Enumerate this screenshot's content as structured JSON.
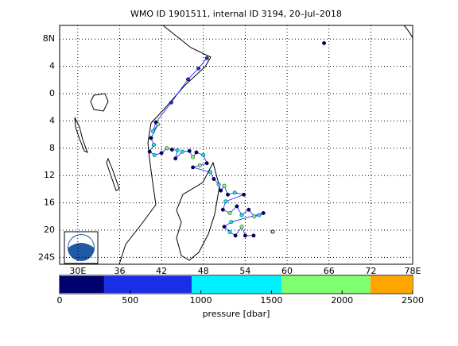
{
  "chart_data": {
    "type": "scatter",
    "title": "WMO ID 1901511, internal ID 3194, 20–Jul–2018",
    "xlim": [
      27.4,
      78
    ],
    "ylim": [
      -25,
      10
    ],
    "xticks": [
      {
        "value": 30,
        "label": "30E"
      },
      36,
      42,
      48,
      54,
      60,
      66,
      72,
      {
        "value": 78,
        "label": "78E"
      }
    ],
    "yticks": [
      {
        "value": 8,
        "label": "8N"
      },
      4,
      0,
      {
        "value": -4,
        "label": "4"
      },
      {
        "value": -8,
        "label": "8"
      },
      {
        "value": -12,
        "label": "12"
      },
      {
        "value": -16,
        "label": "16"
      },
      {
        "value": -20,
        "label": "20"
      },
      {
        "value": -24,
        "label": "24S"
      }
    ],
    "grid": true,
    "line_color": "#1a1aff",
    "x": [
      65.3,
      48.5,
      47.3,
      45.8,
      43.4,
      41.2,
      40.8,
      41.5,
      40.5,
      40.9,
      40.3,
      41.0,
      42.0,
      42.8,
      43.5,
      44.3,
      44.0,
      45.0,
      46.0,
      46.5,
      47.0,
      48.0,
      48.5,
      47.5,
      46.5,
      49.0,
      49.5,
      50.2,
      50.5,
      51.0,
      51.5,
      52.5,
      53.8,
      51.2,
      50.8,
      51.8,
      52.8,
      53.5,
      54.5,
      55.3,
      56.0,
      56.6,
      52.0,
      51.0,
      51.8,
      52.6,
      53.5,
      54.0,
      55.2
    ],
    "y": [
      7.4,
      5.2,
      3.7,
      2.1,
      -1.3,
      -4.2,
      -5.5,
      -4.5,
      -6.5,
      -7.5,
      -8.5,
      -9.0,
      -8.7,
      -8.0,
      -8.2,
      -8.3,
      -9.5,
      -8.5,
      -8.4,
      -9.3,
      -8.6,
      -9.0,
      -10.2,
      -10.5,
      -10.8,
      -11.5,
      -12.5,
      -13.3,
      -14.2,
      -13.5,
      -14.8,
      -14.5,
      -14.8,
      -15.8,
      -17.0,
      -17.5,
      -16.5,
      -17.8,
      -17.0,
      -18.0,
      -17.8,
      -17.5,
      -18.8,
      -19.5,
      -20.3,
      -20.8,
      -19.5,
      -20.8,
      -20.8
    ],
    "pressure": [
      100,
      500,
      500,
      500,
      500,
      100,
      1000,
      1800,
      100,
      1000,
      100,
      1000,
      100,
      1800,
      100,
      1000,
      100,
      1000,
      100,
      1800,
      100,
      1000,
      100,
      1800,
      100,
      1000,
      100,
      1000,
      100,
      1800,
      100,
      1000,
      100,
      1000,
      100,
      1800,
      100,
      1000,
      100,
      1800,
      1000,
      100,
      1000,
      100,
      1000,
      100,
      1800,
      100,
      100
    ],
    "colorbar": {
      "label": "pressure [dbar]",
      "bounds": [
        0,
        315,
        935,
        1571,
        2200,
        2500
      ],
      "colors": [
        "#00006e",
        "#1a2ee6",
        "#00f0ff",
        "#80ff70",
        "#ffa500"
      ],
      "ticks": [
        0,
        500,
        1000,
        1500,
        2000,
        2500
      ]
    }
  }
}
